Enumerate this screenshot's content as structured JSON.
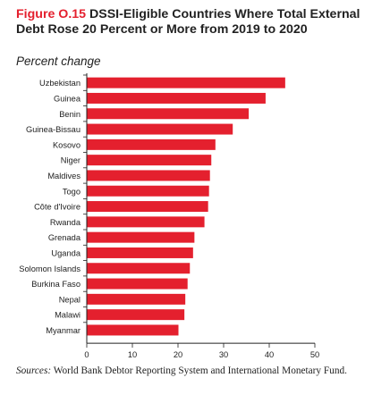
{
  "figure": {
    "number": "Figure O.15",
    "title": "DSSI-Eligible Countries Where Total External Debt Rose 20 Percent or More from 2019 to 2020",
    "subtitle": "Percent change"
  },
  "source": {
    "label": "Sources:",
    "text": "World Bank Debtor Reporting System and International Monetary Fund."
  },
  "colors": {
    "bar": "#e4202e",
    "axis": "#222222"
  },
  "chart_data": {
    "type": "bar",
    "orientation": "horizontal",
    "categories": [
      "Uzbekistan",
      "Guinea",
      "Benin",
      "Guinea-Bissau",
      "Kosovo",
      "Niger",
      "Maldives",
      "Togo",
      "Côte d'Ivoire",
      "Rwanda",
      "Grenada",
      "Uganda",
      "Solomon Islands",
      "Burkina Faso",
      "Nepal",
      "Malawi",
      "Myanmar"
    ],
    "values": [
      43.5,
      39.2,
      35.5,
      32.0,
      28.2,
      27.3,
      27.0,
      26.8,
      26.6,
      25.8,
      23.6,
      23.3,
      22.6,
      22.1,
      21.6,
      21.4,
      20.1
    ],
    "xlim": [
      0,
      50
    ],
    "xticks": [
      "0",
      "10",
      "20",
      "30",
      "40",
      "50"
    ],
    "title": "DSSI-Eligible Countries Where Total External Debt Rose 20 Percent or More from 2019 to 2020",
    "xlabel": "",
    "ylabel": "Percent change",
    "grid": false
  }
}
